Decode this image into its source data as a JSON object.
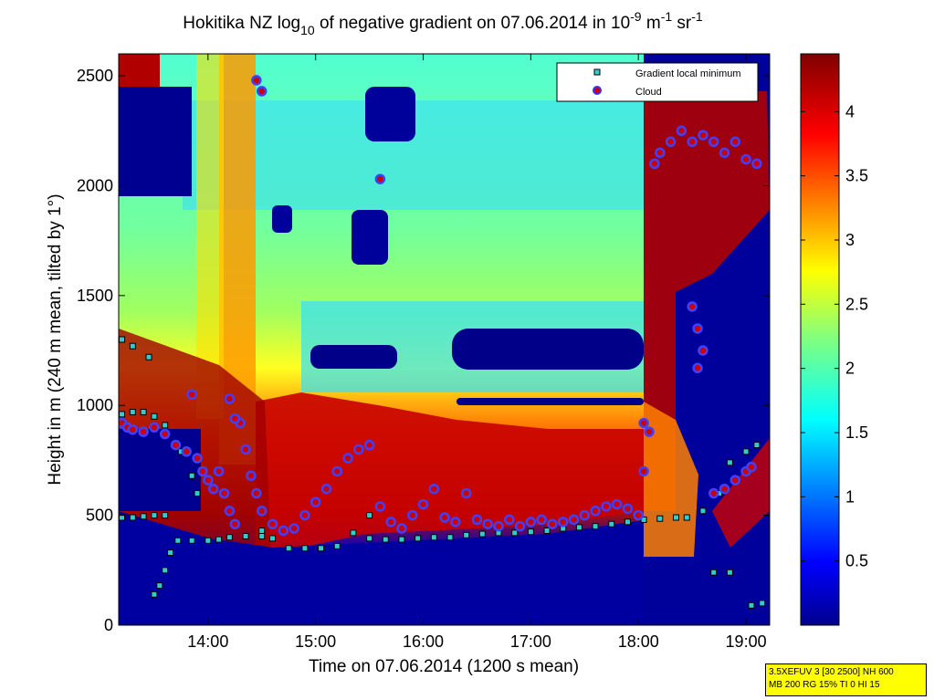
{
  "chart_data": {
    "type": "heatmap",
    "title": {
      "prefix": "Hokitika NZ log",
      "log_sub": "10",
      "mid": " of negative gradient on 07.06.2014 in 10",
      "exp1": "-9",
      "unit1": " m",
      "exp2": "-1",
      "unit2": " sr",
      "exp3": "-1"
    },
    "xlabel": "Time on 07.06.2014 (1200 s mean)",
    "ylabel": "Height in m (240 m mean, tilted by 1°)",
    "x_ticks": [
      "14:00",
      "15:00",
      "16:00",
      "17:00",
      "18:00",
      "19:00"
    ],
    "x_tick_hours": [
      14,
      15,
      16,
      17,
      18,
      19
    ],
    "xlim_hours": [
      13.17,
      19.22
    ],
    "y_ticks": [
      "0",
      "500",
      "1000",
      "1500",
      "2000",
      "2500"
    ],
    "y_tick_values": [
      0,
      500,
      1000,
      1500,
      2000,
      2500
    ],
    "ylim": [
      0,
      2600
    ],
    "colorbar": {
      "ticks": [
        "0.5",
        "1",
        "1.5",
        "2",
        "2.5",
        "3",
        "3.5",
        "4"
      ],
      "tick_values": [
        0.5,
        1,
        1.5,
        2,
        2.5,
        3,
        3.5,
        4
      ],
      "range": [
        0,
        4.45
      ],
      "colormap": "jet"
    },
    "legend": {
      "position": "top-right",
      "entries": [
        {
          "label": "Gradient local minimum",
          "marker": "square",
          "color": "#33cccc"
        },
        {
          "label": "Cloud",
          "marker": "circle",
          "color": "#cc0000",
          "edge": "#3333ff"
        }
      ]
    },
    "series": [
      {
        "name": "Gradient local minimum",
        "points": [
          [
            13.2,
            490
          ],
          [
            13.3,
            490
          ],
          [
            13.4,
            495
          ],
          [
            13.5,
            500
          ],
          [
            13.6,
            500
          ],
          [
            13.72,
            385
          ],
          [
            13.85,
            385
          ],
          [
            14.0,
            385
          ],
          [
            14.1,
            390
          ],
          [
            14.2,
            400
          ],
          [
            14.35,
            405
          ],
          [
            14.5,
            405
          ],
          [
            14.6,
            395
          ],
          [
            14.75,
            350
          ],
          [
            14.9,
            350
          ],
          [
            15.05,
            350
          ],
          [
            15.2,
            360
          ],
          [
            15.35,
            420
          ],
          [
            15.5,
            395
          ],
          [
            15.65,
            390
          ],
          [
            15.8,
            390
          ],
          [
            15.95,
            395
          ],
          [
            16.1,
            400
          ],
          [
            16.25,
            400
          ],
          [
            16.4,
            410
          ],
          [
            16.55,
            415
          ],
          [
            16.7,
            420
          ],
          [
            16.85,
            420
          ],
          [
            17.0,
            425
          ],
          [
            17.15,
            430
          ],
          [
            17.3,
            440
          ],
          [
            17.45,
            445
          ],
          [
            17.6,
            450
          ],
          [
            17.75,
            460
          ],
          [
            17.9,
            470
          ],
          [
            18.05,
            480
          ],
          [
            18.2,
            485
          ],
          [
            18.35,
            490
          ],
          [
            18.45,
            490
          ],
          [
            18.6,
            520
          ],
          [
            18.75,
            600
          ],
          [
            18.85,
            740
          ],
          [
            19.0,
            790
          ],
          [
            19.1,
            820
          ],
          [
            18.7,
            240
          ],
          [
            18.85,
            240
          ],
          [
            19.05,
            90
          ],
          [
            19.15,
            100
          ],
          [
            13.2,
            1300
          ],
          [
            13.3,
            1270
          ],
          [
            13.45,
            1220
          ],
          [
            13.2,
            960
          ],
          [
            13.3,
            970
          ],
          [
            13.4,
            970
          ],
          [
            13.5,
            950
          ],
          [
            13.6,
            910
          ],
          [
            13.75,
            790
          ],
          [
            13.85,
            680
          ],
          [
            13.9,
            600
          ],
          [
            13.65,
            330
          ],
          [
            13.6,
            250
          ],
          [
            13.55,
            180
          ],
          [
            13.5,
            140
          ],
          [
            14.5,
            430
          ],
          [
            15.5,
            500
          ]
        ]
      },
      {
        "name": "Cloud",
        "points": [
          [
            13.2,
            920
          ],
          [
            13.25,
            900
          ],
          [
            13.3,
            890
          ],
          [
            13.4,
            880
          ],
          [
            13.5,
            900
          ],
          [
            13.6,
            870
          ],
          [
            13.7,
            820
          ],
          [
            13.8,
            790
          ],
          [
            13.9,
            760
          ],
          [
            13.95,
            700
          ],
          [
            14.0,
            660
          ],
          [
            14.05,
            620
          ],
          [
            14.1,
            700
          ],
          [
            14.15,
            600
          ],
          [
            14.2,
            520
          ],
          [
            14.25,
            460
          ],
          [
            14.3,
            920
          ],
          [
            14.35,
            800
          ],
          [
            14.4,
            680
          ],
          [
            14.45,
            600
          ],
          [
            14.5,
            520
          ],
          [
            14.6,
            460
          ],
          [
            14.7,
            430
          ],
          [
            14.8,
            440
          ],
          [
            14.9,
            500
          ],
          [
            15.0,
            560
          ],
          [
            15.1,
            620
          ],
          [
            15.2,
            700
          ],
          [
            15.3,
            760
          ],
          [
            15.4,
            800
          ],
          [
            15.5,
            820
          ],
          [
            15.6,
            540
          ],
          [
            15.7,
            470
          ],
          [
            15.8,
            440
          ],
          [
            15.9,
            500
          ],
          [
            16.0,
            550
          ],
          [
            16.1,
            620
          ],
          [
            16.2,
            490
          ],
          [
            16.3,
            470
          ],
          [
            16.4,
            600
          ],
          [
            16.5,
            480
          ],
          [
            16.6,
            460
          ],
          [
            16.7,
            450
          ],
          [
            16.8,
            480
          ],
          [
            16.9,
            450
          ],
          [
            17.0,
            470
          ],
          [
            17.1,
            480
          ],
          [
            17.2,
            460
          ],
          [
            17.3,
            470
          ],
          [
            17.4,
            480
          ],
          [
            17.5,
            500
          ],
          [
            17.6,
            520
          ],
          [
            17.7,
            540
          ],
          [
            17.8,
            550
          ],
          [
            17.9,
            530
          ],
          [
            18.0,
            500
          ],
          [
            18.05,
            700
          ],
          [
            18.1,
            880
          ],
          [
            18.15,
            2100
          ],
          [
            18.2,
            2150
          ],
          [
            18.3,
            2200
          ],
          [
            18.4,
            2250
          ],
          [
            18.5,
            2200
          ],
          [
            18.6,
            2230
          ],
          [
            18.7,
            2200
          ],
          [
            18.8,
            2150
          ],
          [
            18.9,
            2200
          ],
          [
            19.0,
            2120
          ],
          [
            19.1,
            2100
          ],
          [
            18.5,
            1450
          ],
          [
            18.55,
            1350
          ],
          [
            18.6,
            1250
          ],
          [
            18.55,
            1170
          ],
          [
            18.7,
            600
          ],
          [
            18.8,
            620
          ],
          [
            18.9,
            660
          ],
          [
            19.0,
            700
          ],
          [
            19.05,
            720
          ],
          [
            14.2,
            1030
          ],
          [
            14.45,
            2480
          ],
          [
            14.5,
            2430
          ],
          [
            15.6,
            2030
          ],
          [
            13.85,
            1050
          ],
          [
            14.25,
            940
          ],
          [
            18.05,
            920
          ]
        ]
      }
    ]
  },
  "info_box": {
    "line1": "3.5XEFUV 3 [30 2500] NH 600",
    "line2": "MB 200 RG 15% TI 0 HI 15"
  }
}
